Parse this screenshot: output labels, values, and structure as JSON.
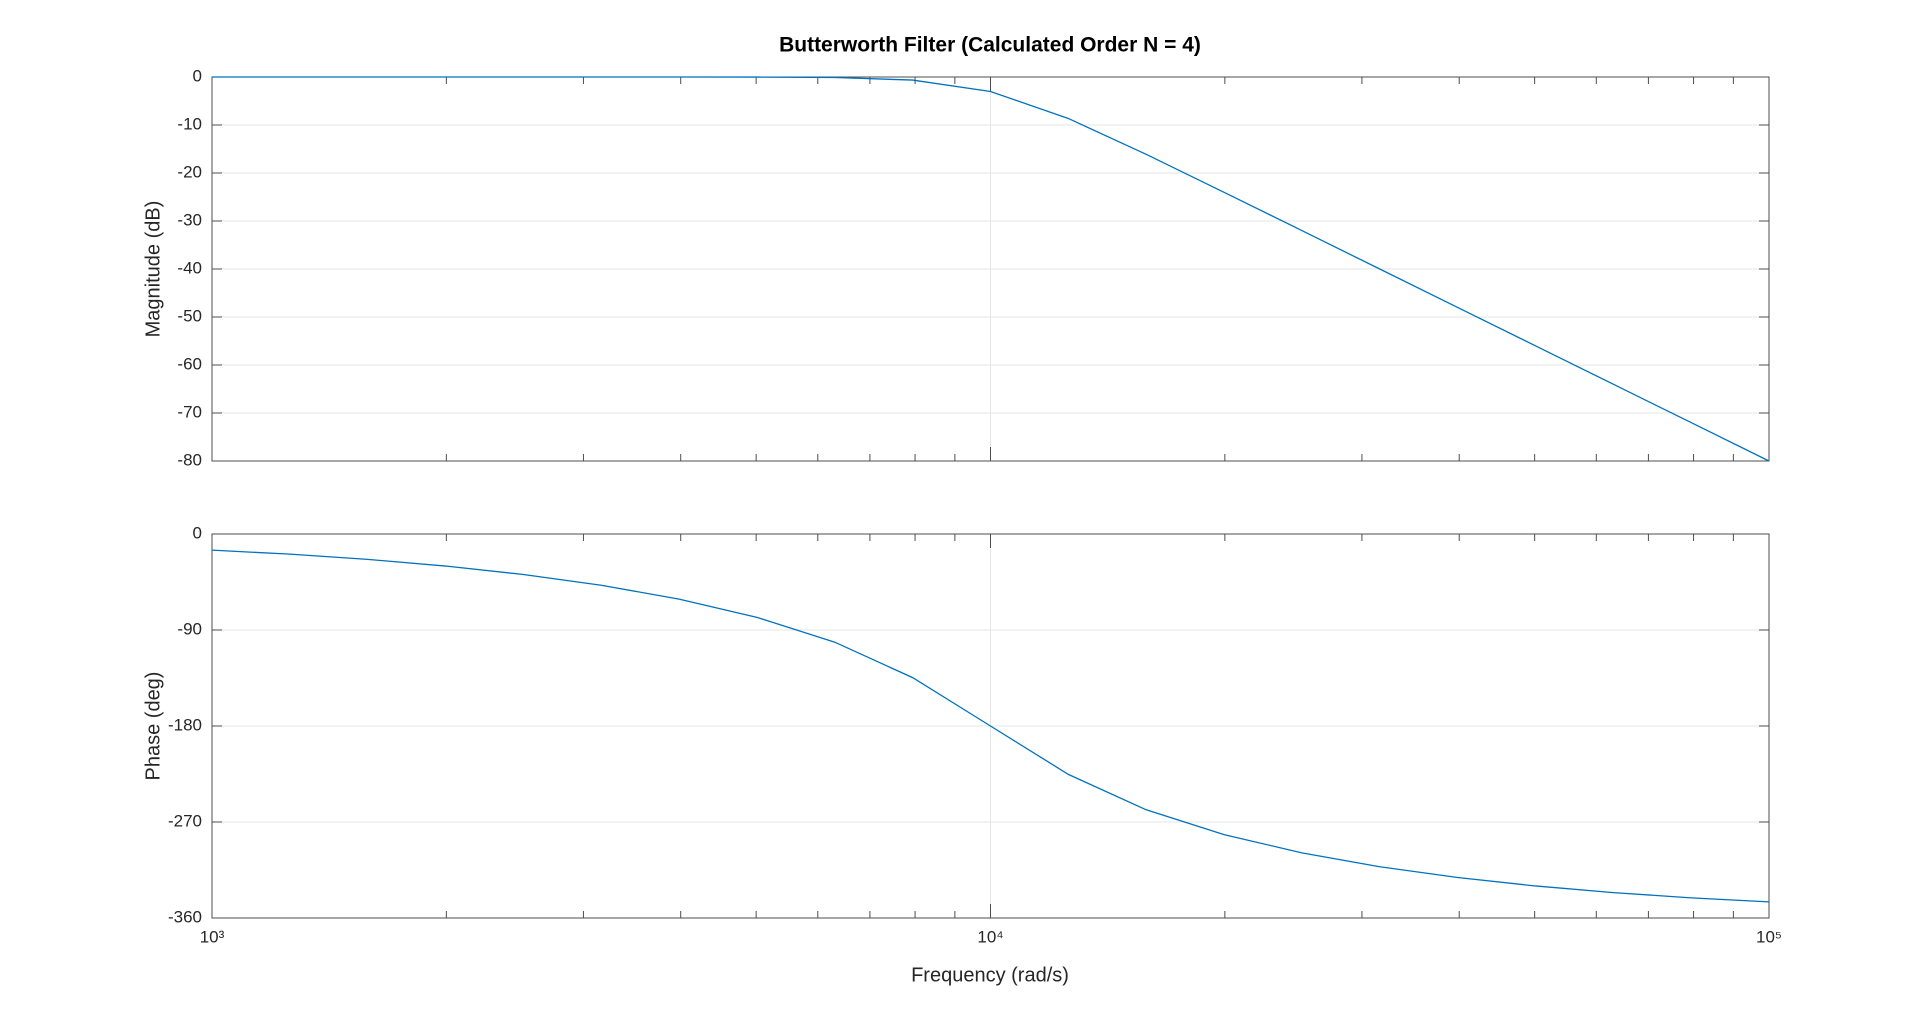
{
  "chart_data": [
    {
      "type": "line",
      "title": "Butterworth Filter (Calculated Order N = 4)",
      "ylabel": "Magnitude (dB)",
      "xscale": "log",
      "xlim": [
        1000,
        100000
      ],
      "ylim": [
        -80,
        0
      ],
      "yticks": [
        -80,
        -70,
        -60,
        -50,
        -40,
        -30,
        -20,
        -10,
        0
      ],
      "grid": true,
      "x": [
        1000,
        1259,
        1585,
        1995,
        2512,
        3162,
        3981,
        5012,
        6310,
        7943,
        10000,
        12589,
        15849,
        19953,
        25119,
        31623,
        39811,
        50119,
        63096,
        79433,
        100000
      ],
      "series": [
        {
          "color": "#0072bd",
          "values": [
            0,
            0,
            0,
            0,
            0,
            -0.0004,
            -0.003,
            -0.017,
            -0.108,
            -0.639,
            -3.01,
            -8.64,
            -16.11,
            -24.02,
            -32.0,
            -40.0,
            -48.0,
            -56.0,
            -64.0,
            -72.0,
            -80.0
          ]
        }
      ]
    },
    {
      "type": "line",
      "ylabel": "Phase (deg)",
      "xlabel": "Frequency (rad/s)",
      "xscale": "log",
      "xlim": [
        1000,
        100000
      ],
      "ylim": [
        -360,
        0
      ],
      "yticks": [
        -360,
        -270,
        -180,
        -90,
        0
      ],
      "grid": true,
      "xticks": [
        {
          "value": 1000,
          "label": "10³"
        },
        {
          "value": 10000,
          "label": "10⁴"
        },
        {
          "value": 100000,
          "label": "10⁵"
        }
      ],
      "xminorticks": [
        2000,
        3000,
        4000,
        5000,
        6000,
        7000,
        8000,
        9000,
        20000,
        30000,
        40000,
        50000,
        60000,
        70000,
        80000,
        90000
      ],
      "x": [
        1000,
        1259,
        1585,
        1995,
        2512,
        3162,
        3981,
        5012,
        6310,
        7943,
        10000,
        12589,
        15849,
        19953,
        25119,
        31623,
        39811,
        50119,
        63096,
        79433,
        100000
      ],
      "series": [
        {
          "color": "#0072bd",
          "values": [
            -15.1,
            -18.89,
            -23.81,
            -30.04,
            -37.95,
            -48.05,
            -61.07,
            -78.17,
            -101.44,
            -134.64,
            -180,
            -225.36,
            -258.56,
            -281.83,
            -298.93,
            -311.95,
            -322.05,
            -329.96,
            -336.19,
            -341.11,
            -344.9
          ]
        }
      ]
    }
  ]
}
